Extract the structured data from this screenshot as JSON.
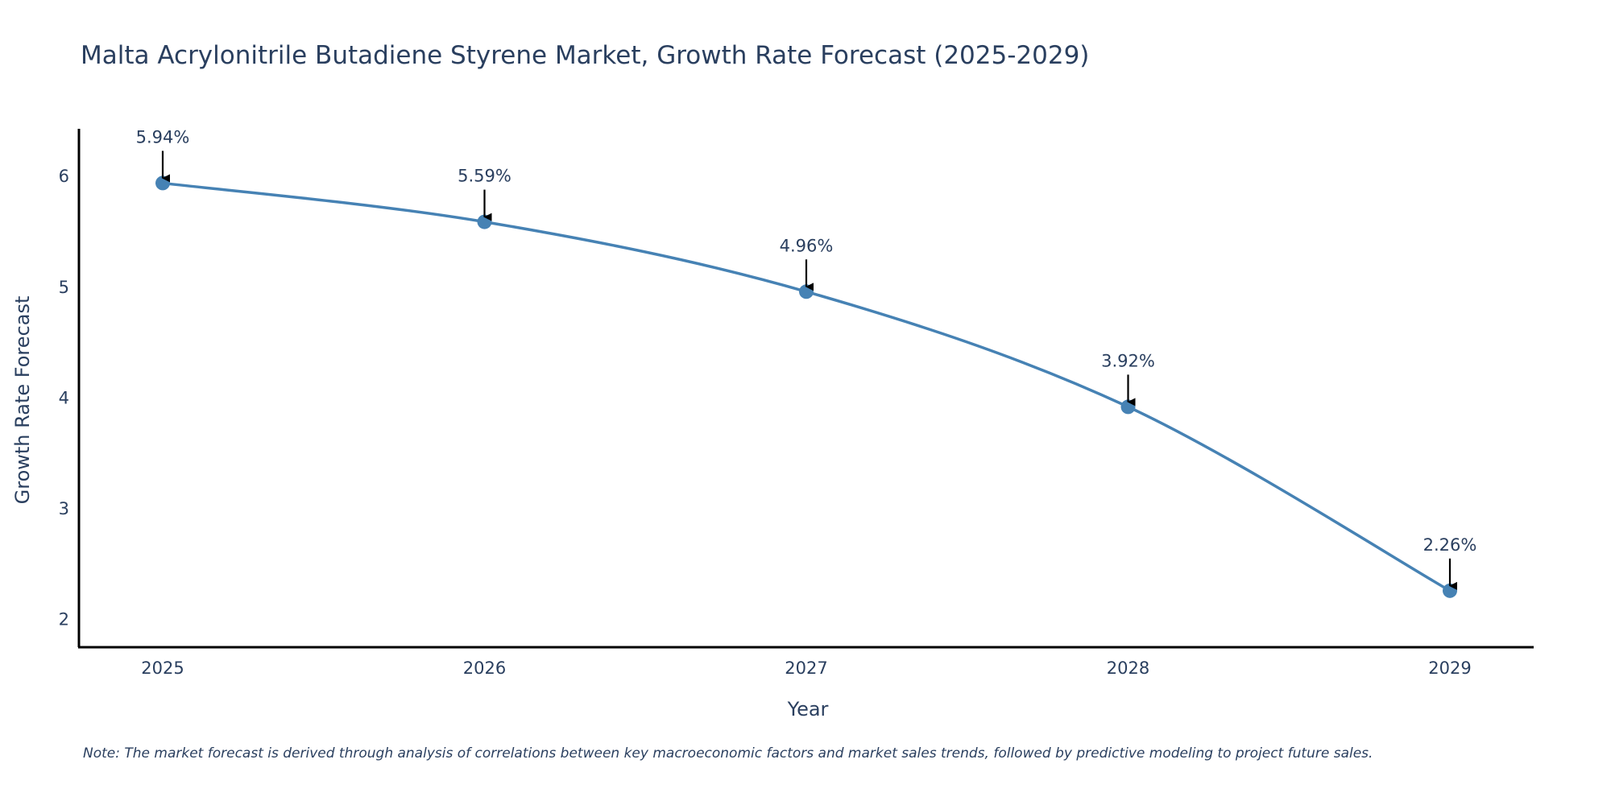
{
  "chart_data": {
    "type": "line",
    "title": "Malta Acrylonitrile Butadiene Styrene Market, Growth Rate Forecast (2025-2029)",
    "xlabel": "Year",
    "ylabel": "Growth Rate Forecast",
    "categories": [
      "2025",
      "2026",
      "2027",
      "2028",
      "2029"
    ],
    "values": [
      5.94,
      5.59,
      4.96,
      3.92,
      2.26
    ],
    "data_labels": [
      "5.94%",
      "5.59%",
      "4.96%",
      "3.92%",
      "2.26%"
    ],
    "y_ticks": [
      "2",
      "3",
      "4",
      "5",
      "6"
    ],
    "ylim": [
      1.75,
      6.43
    ],
    "grid": false,
    "line_shape": "spline",
    "series_color": "#4682b4",
    "note": "Note: The market forecast is derived through analysis of correlations between key macroeconomic factors and market sales trends, followed by predictive modeling to project future sales."
  }
}
